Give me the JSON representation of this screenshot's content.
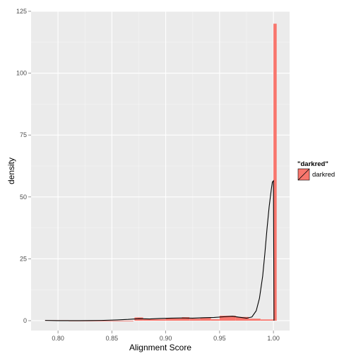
{
  "chart_data": {
    "type": "histogram",
    "xlabel": "Alignment Score",
    "ylabel": "density",
    "xlim": [
      0.775,
      1.015
    ],
    "ylim": [
      -4,
      125
    ],
    "x_ticks": [
      0.8,
      0.85,
      0.9,
      0.95,
      1.0
    ],
    "x_tick_labels": [
      "0.80",
      "0.85",
      "0.90",
      "0.95",
      "1.00"
    ],
    "y_ticks": [
      0,
      25,
      50,
      75,
      100,
      125
    ],
    "y_tick_labels": [
      "0",
      "25",
      "50",
      "75",
      "100",
      "125"
    ],
    "grid": true,
    "colors": {
      "fill": "#F8766D",
      "panel": "#EBEBEB",
      "grid": "#FFFFFF",
      "density_line": "#000000"
    },
    "legend": {
      "title": "\"darkred\"",
      "position": "right",
      "entries": [
        {
          "label": "darkred",
          "color": "#F8766D"
        }
      ]
    },
    "histogram_bins": [
      {
        "x_start": 0.788,
        "x_end": 0.81,
        "density": 0.2
      },
      {
        "x_start": 0.81,
        "x_end": 0.87,
        "density": 0.0
      },
      {
        "x_start": 0.871,
        "x_end": 0.879,
        "density": 1.3
      },
      {
        "x_start": 0.879,
        "x_end": 0.9,
        "density": 0.6
      },
      {
        "x_start": 0.9,
        "x_end": 0.915,
        "density": 0.9
      },
      {
        "x_start": 0.915,
        "x_end": 0.922,
        "density": 1.4
      },
      {
        "x_start": 0.922,
        "x_end": 0.932,
        "density": 0.8
      },
      {
        "x_start": 0.932,
        "x_end": 0.942,
        "density": 1.1
      },
      {
        "x_start": 0.942,
        "x_end": 0.95,
        "density": 0.6
      },
      {
        "x_start": 0.95,
        "x_end": 0.965,
        "density": 2.0
      },
      {
        "x_start": 0.965,
        "x_end": 0.977,
        "density": 1.5
      },
      {
        "x_start": 0.977,
        "x_end": 0.988,
        "density": 0.8
      },
      {
        "x_start": 0.988,
        "x_end": 1.0,
        "density": 0.5
      },
      {
        "x_start": 1.0,
        "x_end": 1.003,
        "density": 120.0
      }
    ],
    "density_curve": {
      "x": [
        0.788,
        0.8,
        0.82,
        0.84,
        0.855,
        0.865,
        0.875,
        0.885,
        0.895,
        0.905,
        0.915,
        0.925,
        0.935,
        0.945,
        0.955,
        0.962,
        0.968,
        0.975,
        0.98,
        0.984,
        0.987,
        0.99,
        0.992,
        0.994,
        0.996,
        0.998,
        0.999,
        1.0,
        1.0005
      ],
      "y": [
        0.1,
        0.0,
        0.0,
        0.1,
        0.3,
        0.5,
        0.8,
        0.7,
        0.9,
        1.0,
        1.1,
        1.0,
        1.2,
        1.3,
        1.6,
        1.8,
        1.4,
        1.0,
        1.5,
        4.0,
        9.0,
        18.0,
        27.0,
        37.0,
        46.0,
        53.0,
        56.0,
        56.5,
        0.0
      ]
    }
  }
}
